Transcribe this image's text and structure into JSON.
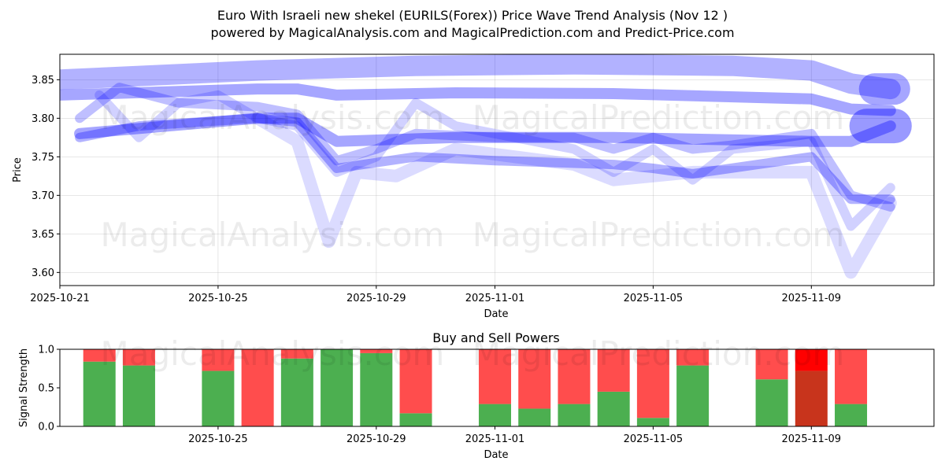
{
  "title_line1": "Euro With Israeli new shekel (EURILS(Forex)) Price Wave Trend Analysis (Nov 12 )",
  "title_line2": "powered by MagicalAnalysis.com and MagicalPrediction.com and Predict-Price.com",
  "watermarks": [
    "MagicalAnalysis.com",
    "MagicalPrediction.com"
  ],
  "colors": {
    "wave": "#0000ff",
    "buy": "#4caf50",
    "sell": "#ff4d4d",
    "sell_strong": "#ff0000",
    "buy_dark": "#c8341c"
  },
  "chart_data": [
    {
      "type": "line",
      "xlabel": "Date",
      "ylabel": "Price",
      "x_ticks": [
        "2025-10-21",
        "2025-10-25",
        "2025-10-29",
        "2025-11-01",
        "2025-11-05",
        "2025-11-09"
      ],
      "x_tick_days": [
        0,
        4,
        8,
        11,
        15,
        19
      ],
      "xlim_days": [
        0,
        22.1
      ],
      "ylim": [
        3.583,
        3.883
      ],
      "y_ticks": [
        "3.60",
        "3.65",
        "3.70",
        "3.75",
        "3.80",
        "3.85"
      ],
      "series": [
        {
          "name": "wave-upper-band",
          "width": 26,
          "opacity": 0.3,
          "x": [
            0,
            5,
            9,
            13,
            17,
            19,
            20,
            21
          ],
          "y": [
            3.85,
            3.862,
            3.868,
            3.87,
            3.868,
            3.862,
            3.845,
            3.838
          ]
        },
        {
          "name": "wave-upper-main",
          "width": 14,
          "opacity": 0.35,
          "x": [
            0,
            5,
            6,
            7,
            10,
            14,
            19,
            20,
            21
          ],
          "y": [
            3.83,
            3.838,
            3.838,
            3.83,
            3.833,
            3.832,
            3.825,
            3.812,
            3.81
          ]
        },
        {
          "name": "wave-mid-main",
          "width": 14,
          "opacity": 0.35,
          "x": [
            0.5,
            5,
            6,
            7,
            10,
            14,
            19,
            20,
            21
          ],
          "y": [
            3.78,
            3.8,
            3.8,
            3.77,
            3.775,
            3.775,
            3.77,
            3.77,
            3.79
          ]
        },
        {
          "name": "wave-lower-a",
          "width": 12,
          "opacity": 0.3,
          "x": [
            0.5,
            2,
            5,
            6,
            7,
            9,
            11,
            14,
            15,
            16,
            19,
            20,
            21
          ],
          "y": [
            3.775,
            3.79,
            3.8,
            3.795,
            3.735,
            3.75,
            3.745,
            3.74,
            3.735,
            3.728,
            3.75,
            3.695,
            3.695
          ]
        },
        {
          "name": "wave-lower-b",
          "width": 12,
          "opacity": 0.25,
          "x": [
            0.5,
            1.5,
            3,
            5,
            6,
            7,
            8,
            9,
            11,
            13,
            14,
            15,
            16,
            17,
            19,
            20,
            21
          ],
          "y": [
            3.8,
            3.84,
            3.82,
            3.815,
            3.805,
            3.745,
            3.76,
            3.78,
            3.775,
            3.775,
            3.76,
            3.775,
            3.76,
            3.765,
            3.78,
            3.7,
            3.685
          ]
        },
        {
          "name": "wave-dip",
          "width": 16,
          "opacity": 0.14,
          "x": [
            5,
            6,
            6.8,
            7.5,
            8.5,
            10,
            13,
            14,
            16,
            19,
            20,
            21
          ],
          "y": [
            3.8,
            3.77,
            3.64,
            3.73,
            3.725,
            3.76,
            3.74,
            3.72,
            3.73,
            3.73,
            3.6,
            3.69
          ]
        },
        {
          "name": "wave-zigzag",
          "width": 12,
          "opacity": 0.18,
          "x": [
            1,
            2,
            3,
            4,
            5,
            6,
            7,
            8,
            9,
            10,
            12,
            13,
            14,
            15,
            16,
            17,
            19,
            20,
            21
          ],
          "y": [
            3.83,
            3.775,
            3.82,
            3.83,
            3.8,
            3.79,
            3.73,
            3.75,
            3.82,
            3.79,
            3.77,
            3.76,
            3.73,
            3.76,
            3.72,
            3.76,
            3.77,
            3.66,
            3.71
          ]
        },
        {
          "name": "wave-end-upper",
          "width": 40,
          "opacity": 0.35,
          "x": [
            20.6,
            21.1
          ],
          "y": [
            3.838,
            3.838
          ]
        },
        {
          "name": "wave-end-lower",
          "width": 44,
          "opacity": 0.4,
          "x": [
            20.4,
            21.1
          ],
          "y": [
            3.79,
            3.79
          ]
        }
      ]
    },
    {
      "type": "bar",
      "title": "Buy and Sell Powers",
      "xlabel": "Date",
      "ylabel": "Signal Strength",
      "ylim": [
        0,
        1
      ],
      "y_ticks": [
        "0.0",
        "0.5",
        "1.0"
      ],
      "x_ticks": [
        "2025-10-25",
        "2025-10-29",
        "2025-11-01",
        "2025-11-05",
        "2025-11-09"
      ],
      "x_tick_days": [
        4,
        8,
        11,
        15,
        19
      ],
      "xlim_days": [
        0,
        22.1
      ],
      "bar_days": [
        1,
        2,
        4,
        5,
        6,
        7,
        8,
        9,
        11,
        12,
        13,
        14,
        15,
        16,
        18,
        19,
        20
      ],
      "buy": [
        0.84,
        0.79,
        0.72,
        0.0,
        0.88,
        1.0,
        0.95,
        0.17,
        0.29,
        0.23,
        0.29,
        0.45,
        0.11,
        0.79,
        0.61,
        0.72,
        0.29
      ],
      "sell": [
        0.16,
        0.21,
        0.28,
        1.0,
        0.12,
        0.0,
        0.05,
        0.83,
        0.71,
        0.77,
        0.71,
        0.55,
        0.89,
        0.21,
        0.39,
        0.28,
        0.71
      ],
      "highlight_index": 15
    }
  ]
}
